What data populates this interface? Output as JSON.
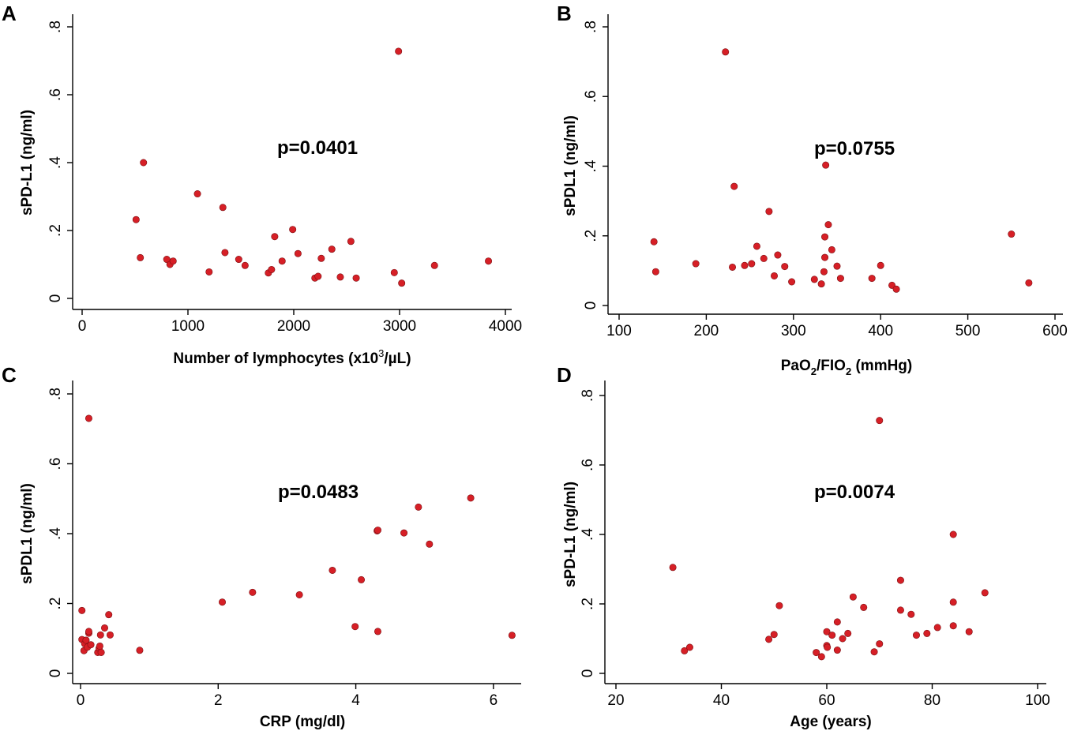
{
  "figure": {
    "colors": {
      "point": "#d61f26",
      "axis": "#000000"
    }
  },
  "chart_data": [
    {
      "type": "scatter",
      "panel": "A",
      "xlabel": "Number of lymphocytes (x10",
      "xlabel_sup": "3",
      "xlabel_tail": "/µL)",
      "ylabel": "sPD-L1 (ng/ml)",
      "annotation": "p=0.0401",
      "xlim": [
        0,
        4000
      ],
      "ylim": [
        0,
        0.8
      ],
      "xticks": [
        0,
        1000,
        2000,
        3000,
        4000
      ],
      "xtick_labels": [
        "0",
        "1000",
        "2000",
        "3000",
        "4000"
      ],
      "yticks": [
        0,
        0.2,
        0.4,
        0.6,
        0.8
      ],
      "ytick_labels": [
        "0",
        ".2",
        ".4",
        ".6",
        ".8"
      ],
      "points": [
        [
          510,
          0.232
        ],
        [
          550,
          0.12
        ],
        [
          580,
          0.4
        ],
        [
          800,
          0.115
        ],
        [
          830,
          0.1
        ],
        [
          860,
          0.11
        ],
        [
          1090,
          0.308
        ],
        [
          1200,
          0.078
        ],
        [
          1330,
          0.268
        ],
        [
          1350,
          0.135
        ],
        [
          1480,
          0.115
        ],
        [
          1540,
          0.097
        ],
        [
          1760,
          0.075
        ],
        [
          1790,
          0.085
        ],
        [
          1820,
          0.182
        ],
        [
          1890,
          0.11
        ],
        [
          1990,
          0.203
        ],
        [
          2040,
          0.132
        ],
        [
          2200,
          0.06
        ],
        [
          2230,
          0.065
        ],
        [
          2260,
          0.118
        ],
        [
          2360,
          0.145
        ],
        [
          2440,
          0.063
        ],
        [
          2540,
          0.168
        ],
        [
          2590,
          0.06
        ],
        [
          2950,
          0.076
        ],
        [
          2990,
          0.728
        ],
        [
          3020,
          0.045
        ],
        [
          3330,
          0.097
        ],
        [
          3840,
          0.11
        ]
      ]
    },
    {
      "type": "scatter",
      "panel": "B",
      "xlabel": "PaO",
      "xlabel_sub1": "2",
      "xlabel_mid": "/FIO",
      "xlabel_sub2": "2",
      "xlabel_tail": " (mmHg)",
      "ylabel": "sPDL1 (ng/ml)",
      "annotation": "p=0.0755",
      "xlim": [
        100,
        600
      ],
      "ylim": [
        0,
        0.8
      ],
      "xticks": [
        100,
        200,
        300,
        400,
        500,
        600
      ],
      "xtick_labels": [
        "100",
        "200",
        "300",
        "400",
        "500",
        "600"
      ],
      "yticks": [
        0,
        0.2,
        0.4,
        0.6,
        0.8
      ],
      "ytick_labels": [
        "0",
        ".2",
        ".4",
        ".6",
        ".8"
      ],
      "points": [
        [
          140,
          0.183
        ],
        [
          142,
          0.097
        ],
        [
          188,
          0.12
        ],
        [
          222,
          0.728
        ],
        [
          230,
          0.11
        ],
        [
          232,
          0.342
        ],
        [
          244,
          0.115
        ],
        [
          252,
          0.12
        ],
        [
          258,
          0.17
        ],
        [
          266,
          0.135
        ],
        [
          272,
          0.27
        ],
        [
          278,
          0.085
        ],
        [
          282,
          0.145
        ],
        [
          290,
          0.112
        ],
        [
          298,
          0.068
        ],
        [
          324,
          0.075
        ],
        [
          332,
          0.062
        ],
        [
          335,
          0.097
        ],
        [
          336,
          0.197
        ],
        [
          336,
          0.138
        ],
        [
          337,
          0.403
        ],
        [
          340,
          0.232
        ],
        [
          344,
          0.16
        ],
        [
          350,
          0.113
        ],
        [
          354,
          0.078
        ],
        [
          390,
          0.078
        ],
        [
          400,
          0.115
        ],
        [
          413,
          0.058
        ],
        [
          418,
          0.047
        ],
        [
          550,
          0.205
        ],
        [
          570,
          0.065
        ]
      ]
    },
    {
      "type": "scatter",
      "panel": "C",
      "xlabel": "CRP (mg/dl)",
      "ylabel": "sPDL1 (ng/ml)",
      "annotation": "p=0.0483",
      "xlim": [
        0,
        6.3
      ],
      "ylim": [
        0,
        0.8
      ],
      "xticks": [
        0,
        2,
        4,
        6
      ],
      "xtick_labels": [
        "0",
        "2",
        "4",
        "6"
      ],
      "yticks": [
        0,
        0.2,
        0.4,
        0.6,
        0.8
      ],
      "ytick_labels": [
        "0",
        ".2",
        ".4",
        ".6",
        ".8"
      ],
      "points": [
        [
          0.02,
          0.18
        ],
        [
          0.02,
          0.097
        ],
        [
          0.05,
          0.065
        ],
        [
          0.06,
          0.085
        ],
        [
          0.08,
          0.095
        ],
        [
          0.1,
          0.075
        ],
        [
          0.12,
          0.73
        ],
        [
          0.12,
          0.115
        ],
        [
          0.12,
          0.12
        ],
        [
          0.15,
          0.082
        ],
        [
          0.25,
          0.06
        ],
        [
          0.27,
          0.072
        ],
        [
          0.28,
          0.078
        ],
        [
          0.29,
          0.11
        ],
        [
          0.3,
          0.06
        ],
        [
          0.35,
          0.13
        ],
        [
          0.41,
          0.168
        ],
        [
          0.43,
          0.11
        ],
        [
          0.86,
          0.066
        ],
        [
          2.06,
          0.204
        ],
        [
          2.5,
          0.232
        ],
        [
          3.18,
          0.225
        ],
        [
          3.66,
          0.295
        ],
        [
          3.99,
          0.134
        ],
        [
          4.08,
          0.268
        ],
        [
          4.31,
          0.408
        ],
        [
          4.32,
          0.41
        ],
        [
          4.32,
          0.12
        ],
        [
          4.7,
          0.402
        ],
        [
          4.91,
          0.476
        ],
        [
          5.07,
          0.37
        ],
        [
          5.67,
          0.502
        ],
        [
          6.27,
          0.109
        ]
      ]
    },
    {
      "type": "scatter",
      "panel": "D",
      "xlabel": "Age (years)",
      "ylabel": "sPD-L1 (ng/ml)",
      "annotation": "p=0.0074",
      "xlim": [
        20,
        100
      ],
      "ylim": [
        0,
        0.8
      ],
      "xticks": [
        20,
        40,
        60,
        80,
        100
      ],
      "xtick_labels": [
        "20",
        "40",
        "60",
        "80",
        "100"
      ],
      "yticks": [
        0,
        0.2,
        0.4,
        0.6,
        0.8
      ],
      "ytick_labels": [
        "0",
        ".2",
        ".4",
        ".6",
        ".8"
      ],
      "points": [
        [
          30.8,
          0.305
        ],
        [
          33.0,
          0.065
        ],
        [
          34.0,
          0.075
        ],
        [
          49.0,
          0.098
        ],
        [
          50.0,
          0.112
        ],
        [
          51.0,
          0.195
        ],
        [
          58.0,
          0.06
        ],
        [
          59.0,
          0.048
        ],
        [
          60.0,
          0.12
        ],
        [
          60.0,
          0.08
        ],
        [
          60.1,
          0.075
        ],
        [
          61.0,
          0.11
        ],
        [
          62.0,
          0.148
        ],
        [
          62.0,
          0.067
        ],
        [
          63.0,
          0.1
        ],
        [
          64.0,
          0.115
        ],
        [
          65.0,
          0.22
        ],
        [
          67.0,
          0.19
        ],
        [
          69.0,
          0.062
        ],
        [
          70.0,
          0.728
        ],
        [
          70.0,
          0.085
        ],
        [
          74.0,
          0.182
        ],
        [
          74.0,
          0.268
        ],
        [
          76.0,
          0.17
        ],
        [
          77.0,
          0.11
        ],
        [
          79.0,
          0.115
        ],
        [
          81.0,
          0.132
        ],
        [
          84.0,
          0.4
        ],
        [
          84.0,
          0.205
        ],
        [
          84.0,
          0.137
        ],
        [
          87.0,
          0.12
        ],
        [
          90.0,
          0.232
        ]
      ]
    }
  ]
}
